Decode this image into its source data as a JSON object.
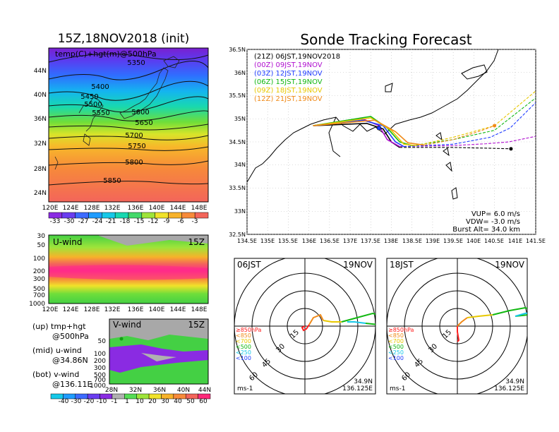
{
  "left_map": {
    "title": "15Z,18NOV2018 (init)",
    "overlay_label": "temp(C)+hgt(m)@500hPa",
    "lon_labels": [
      "120E",
      "124E",
      "128E",
      "132E",
      "136E",
      "140E",
      "144E",
      "148E"
    ],
    "lat_labels": [
      "44N",
      "40N",
      "36N",
      "32N",
      "28N",
      "24N"
    ],
    "contours": [
      "5350",
      "5400",
      "5450",
      "5500",
      "5550",
      "5600",
      "5650",
      "5700",
      "5750",
      "5800",
      "5850"
    ],
    "colorbar_labels": [
      "-33",
      "-30",
      "-27",
      "-24",
      "-21",
      "-18",
      "-15",
      "-12",
      "-9",
      "-6",
      "-3"
    ],
    "colorbar_colors": [
      "#8a2be2",
      "#6a3df0",
      "#3c6bff",
      "#1f9cff",
      "#16c8e8",
      "#18d8b0",
      "#44d96a",
      "#9ee43a",
      "#f0e22a",
      "#f7b22a",
      "#f78a3a",
      "#f3655a"
    ]
  },
  "u_wind": {
    "label": "U-wind",
    "time": "15Z",
    "y_labels": [
      "30",
      "50",
      "100",
      "200",
      "300",
      "500",
      "700",
      "1000"
    ],
    "x_labels": [
      "120E",
      "124E",
      "128E",
      "132E",
      "136E",
      "140E",
      "144E",
      "148E"
    ]
  },
  "v_wind": {
    "label": "V-wind",
    "time": "15Z",
    "y_labels": [
      "50",
      "100",
      "200",
      "300",
      "500",
      "700",
      "1000"
    ],
    "x_labels": [
      "28N",
      "32N",
      "36N",
      "40N",
      "44N"
    ]
  },
  "legend_notes": [
    {
      "head": "(up) tmp+hgt",
      "sub": "@500hPa"
    },
    {
      "head": "(mid) u-wind",
      "sub": "@34.86N"
    },
    {
      "head": "(bot) v-wind",
      "sub": "@136.11E"
    }
  ],
  "wind_colorbar_labels": [
    "-40",
    "-30",
    "-20",
    "-10",
    "-1",
    "1",
    "10",
    "20",
    "30",
    "40",
    "50",
    "60"
  ],
  "wind_colorbar_colors": [
    "#16c8e8",
    "#1f9cff",
    "#3c6bff",
    "#6a3df0",
    "#8a2be2",
    "#b0b0b0",
    "#55dd55",
    "#9ee43a",
    "#f0e22a",
    "#f7b22a",
    "#f78a3a",
    "#f3655a",
    "#ff2a7a"
  ],
  "forecast": {
    "title": "Sonde Tracking Forecast",
    "x_labels": [
      "134.5E",
      "135E",
      "135.5E",
      "136E",
      "136.5E",
      "137E",
      "137.5E",
      "138E",
      "138.5E",
      "139E",
      "139.5E",
      "140E",
      "140.5E",
      "141E",
      "141.5E"
    ],
    "y_labels": [
      "36.5N",
      "36N",
      "35.5N",
      "35N",
      "34.5N",
      "34N",
      "33.5N",
      "33N",
      "32.5N"
    ],
    "xlim": [
      134.5,
      141.5
    ],
    "ylim": [
      32.5,
      36.5
    ],
    "launches": [
      {
        "label": "(21Z)  06JST,19NOV2018",
        "color": "#000000"
      },
      {
        "label": "(00Z)  09JST,19NOV",
        "color": "#b010d0"
      },
      {
        "label": "(03Z)  12JST,19NOV",
        "color": "#1f3cff"
      },
      {
        "label": "(06Z)  15JST,19NOV",
        "color": "#12b812"
      },
      {
        "label": "(09Z)  18JST,19NOV",
        "color": "#e8c800"
      },
      {
        "label": "(12Z)  21JST,19NOV",
        "color": "#f08a18"
      }
    ],
    "params": [
      "VUP=  6.0 m/s",
      "VDW= -3.0 m/s",
      "Burst Alt= 34.0 km"
    ]
  },
  "chart_data": [
    {
      "type": "line",
      "title": "Sonde Tracking Forecast",
      "xlim": [
        134.5,
        141.5
      ],
      "ylim": [
        32.5,
        36.5
      ],
      "series": [
        {
          "name": "(21Z)  06JST,19NOV2018",
          "color": "#000000",
          "x": [
            136.1,
            137.4,
            137.8,
            138.0,
            138.2,
            139.5,
            140.5,
            140.9
          ],
          "y": [
            34.85,
            34.9,
            34.78,
            34.5,
            34.38,
            34.38,
            34.36,
            34.35
          ]
        },
        {
          "name": "(00Z)  09JST,19NOV",
          "color": "#b010d0",
          "x": [
            136.1,
            137.3,
            137.7,
            137.9,
            138.2,
            139.5,
            140.3,
            140.85,
            141.5
          ],
          "y": [
            34.85,
            35.0,
            34.85,
            34.55,
            34.4,
            34.42,
            34.46,
            34.5,
            34.62
          ]
        },
        {
          "name": "(03Z)  12JST,19NOV",
          "color": "#1f3cff",
          "x": [
            136.1,
            137.3,
            137.8,
            138.1,
            138.3,
            139.5,
            140.4,
            140.88,
            141.5
          ],
          "y": [
            34.85,
            34.97,
            34.85,
            34.5,
            34.4,
            34.45,
            34.6,
            34.8,
            35.35
          ]
        },
        {
          "name": "(06Z)  15JST,19NOV",
          "color": "#12b812",
          "x": [
            136.1,
            137.5,
            137.9,
            138.2,
            138.5,
            139.5,
            140.5,
            141.5
          ],
          "y": [
            34.85,
            35.05,
            34.8,
            34.5,
            34.42,
            34.55,
            34.75,
            35.45
          ]
        },
        {
          "name": "(09Z)  18JST,19NOV",
          "color": "#e8c800",
          "x": [
            136.1,
            137.5,
            138.0,
            138.3,
            138.6,
            139.5,
            140.5,
            141.5
          ],
          "y": [
            34.85,
            35.02,
            34.75,
            34.45,
            34.42,
            34.6,
            34.85,
            35.6
          ]
        },
        {
          "name": "(12Z)  21JST,19NOV",
          "color": "#f08a18",
          "x": [
            136.1,
            137.6,
            138.1,
            138.4,
            138.8,
            139.5,
            140.2,
            140.5
          ],
          "y": [
            34.85,
            34.97,
            34.72,
            34.48,
            34.43,
            34.55,
            34.75,
            34.85
          ]
        }
      ]
    },
    {
      "type": "hodograph",
      "title": "06JST",
      "date": "19NOV",
      "rings": [
        "15",
        "30",
        "45",
        "60"
      ],
      "unit": "ms-1",
      "location": [
        "34.9N",
        "136.125E"
      ],
      "levels": [
        {
          "label": "≥850hPa",
          "color": "#ff2020"
        },
        {
          "label": "<850",
          "color": "#f08a18"
        },
        {
          "label": "<700",
          "color": "#e8c800"
        },
        {
          "label": "<500",
          "color": "#12b812"
        },
        {
          "label": "<250",
          "color": "#16c8e8"
        },
        {
          "label": "<100",
          "color": "#1f3cff"
        }
      ]
    },
    {
      "type": "hodograph",
      "title": "18JST",
      "date": "19NOV",
      "rings": [
        "15",
        "30",
        "45",
        "60"
      ],
      "unit": "ms-1",
      "location": [
        "34.9N",
        "136.125E"
      ],
      "levels": [
        {
          "label": "≥850hPa",
          "color": "#ff2020"
        },
        {
          "label": "<850",
          "color": "#f08a18"
        },
        {
          "label": "<700",
          "color": "#e8c800"
        },
        {
          "label": "<500",
          "color": "#12b812"
        },
        {
          "label": "<250",
          "color": "#16c8e8"
        },
        {
          "label": "<100",
          "color": "#1f3cff"
        }
      ]
    }
  ]
}
